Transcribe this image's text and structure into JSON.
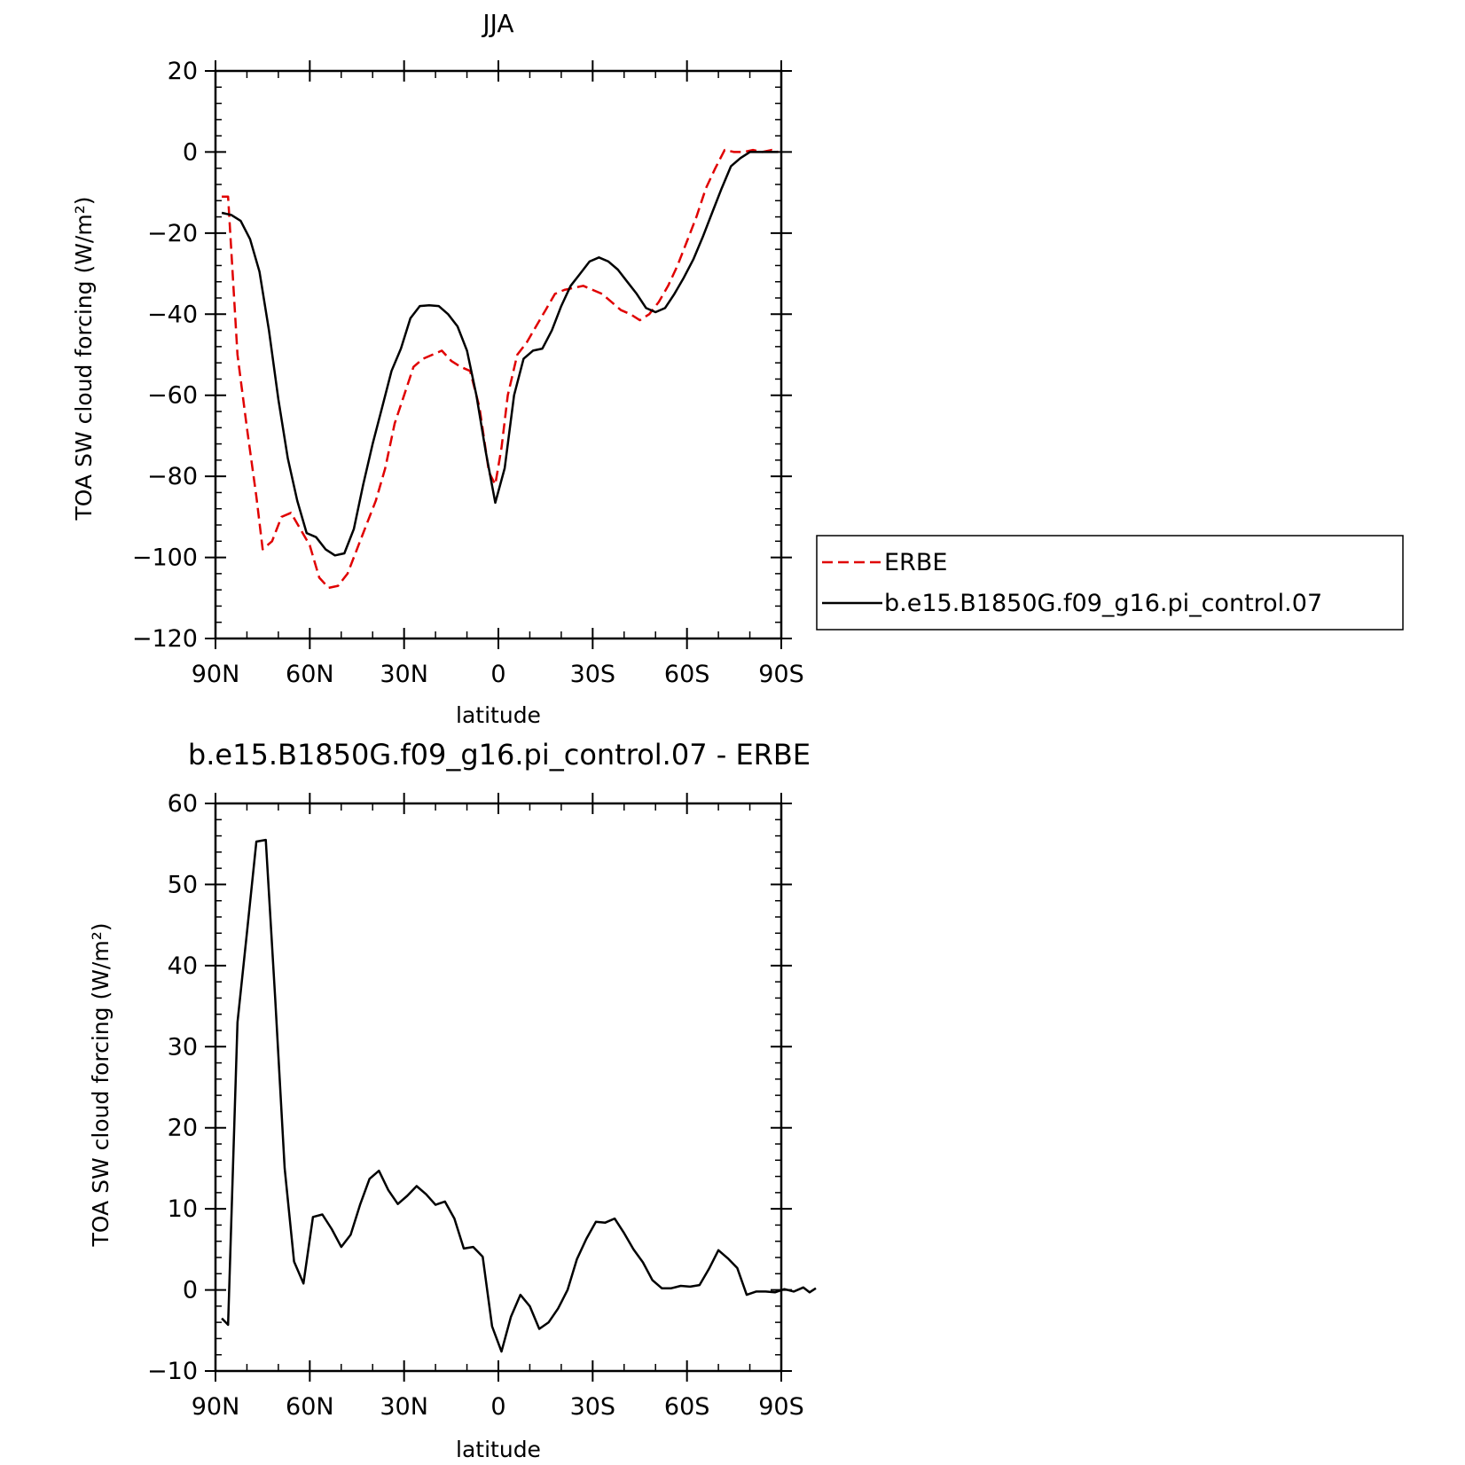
{
  "chart_data": [
    {
      "type": "line",
      "title": "JJA",
      "xlabel": "latitude",
      "ylabel": "TOA SW cloud forcing (W/m²)",
      "xlim": [
        -90,
        90
      ],
      "ylim": [
        -120,
        20
      ],
      "x_ticks": [
        {
          "value": -90,
          "label": "90N"
        },
        {
          "value": -60,
          "label": "60N"
        },
        {
          "value": -30,
          "label": "30N"
        },
        {
          "value": 0,
          "label": "0"
        },
        {
          "value": 30,
          "label": "30S"
        },
        {
          "value": 60,
          "label": "60S"
        },
        {
          "value": 90,
          "label": "90S"
        }
      ],
      "y_ticks": [
        20,
        0,
        -20,
        -40,
        -60,
        -80,
        -100,
        -120
      ],
      "legend": {
        "placement": "right"
      },
      "series": [
        {
          "name": "ERBE",
          "color": "#e00000",
          "dash": "dashed",
          "points": [
            [
              -88,
              -11
            ],
            [
              -86,
              -11
            ],
            [
              -83,
              -50
            ],
            [
              -80,
              -68
            ],
            [
              -77,
              -85
            ],
            [
              -75,
              -98
            ],
            [
              -72,
              -96
            ],
            [
              -69,
              -90
            ],
            [
              -66,
              -89
            ],
            [
              -63,
              -93
            ],
            [
              -60,
              -97
            ],
            [
              -57,
              -105
            ],
            [
              -54,
              -107.5
            ],
            [
              -51,
              -107
            ],
            [
              -48,
              -104
            ],
            [
              -45,
              -98
            ],
            [
              -42,
              -92
            ],
            [
              -39,
              -86
            ],
            [
              -36,
              -78
            ],
            [
              -33,
              -67
            ],
            [
              -30,
              -60
            ],
            [
              -27,
              -53
            ],
            [
              -24,
              -51
            ],
            [
              -21,
              -50
            ],
            [
              -18,
              -49
            ],
            [
              -15,
              -51.5
            ],
            [
              -12,
              -53
            ],
            [
              -9,
              -54
            ],
            [
              -6,
              -63
            ],
            [
              -3,
              -79
            ],
            [
              -1,
              -82
            ],
            [
              1,
              -73
            ],
            [
              3,
              -60
            ],
            [
              6,
              -50
            ],
            [
              9,
              -47
            ],
            [
              12,
              -43
            ],
            [
              15,
              -39
            ],
            [
              18,
              -35
            ],
            [
              21,
              -34
            ],
            [
              24,
              -33.5
            ],
            [
              27,
              -33
            ],
            [
              30,
              -34
            ],
            [
              33,
              -35
            ],
            [
              36,
              -37
            ],
            [
              39,
              -39
            ],
            [
              42,
              -40
            ],
            [
              45,
              -41.5
            ],
            [
              48,
              -40
            ],
            [
              51,
              -37
            ],
            [
              54,
              -33
            ],
            [
              57,
              -28
            ],
            [
              60,
              -22
            ],
            [
              63,
              -16
            ],
            [
              66,
              -9
            ],
            [
              69,
              -4
            ],
            [
              72,
              0.5
            ],
            [
              75,
              0
            ],
            [
              78,
              0
            ],
            [
              81,
              0.5
            ],
            [
              84,
              0
            ],
            [
              87,
              0.5
            ],
            [
              89,
              0
            ]
          ]
        },
        {
          "name": "b.e15.B1850G.f09_g16.pi_control.07",
          "color": "#000000",
          "dash": "solid",
          "points": [
            [
              -88,
              -15
            ],
            [
              -85,
              -15.5
            ],
            [
              -82,
              -17
            ],
            [
              -79,
              -21.5
            ],
            [
              -76,
              -29.5
            ],
            [
              -73,
              -44
            ],
            [
              -70,
              -61
            ],
            [
              -67,
              -75.5
            ],
            [
              -64,
              -86
            ],
            [
              -61,
              -94
            ],
            [
              -58,
              -95
            ],
            [
              -55,
              -98
            ],
            [
              -52,
              -99.5
            ],
            [
              -49,
              -99
            ],
            [
              -46,
              -93
            ],
            [
              -43,
              -82
            ],
            [
              -40,
              -72
            ],
            [
              -37,
              -63
            ],
            [
              -34,
              -54
            ],
            [
              -31,
              -48.5
            ],
            [
              -28,
              -41
            ],
            [
              -25,
              -38
            ],
            [
              -22,
              -37.8
            ],
            [
              -19,
              -38
            ],
            [
              -16,
              -40
            ],
            [
              -13,
              -43
            ],
            [
              -10,
              -49
            ],
            [
              -7,
              -60
            ],
            [
              -4,
              -74
            ],
            [
              -1,
              -86.5
            ],
            [
              2,
              -78
            ],
            [
              5,
              -60
            ],
            [
              8,
              -51
            ],
            [
              11,
              -49
            ],
            [
              14,
              -48.5
            ],
            [
              17,
              -44
            ],
            [
              20,
              -38
            ],
            [
              23,
              -33
            ],
            [
              26,
              -30
            ],
            [
              29,
              -27
            ],
            [
              32,
              -26
            ],
            [
              35,
              -27
            ],
            [
              38,
              -29
            ],
            [
              41,
              -32
            ],
            [
              44,
              -35
            ],
            [
              47,
              -38.5
            ],
            [
              50,
              -39.5
            ],
            [
              53,
              -38.5
            ],
            [
              56,
              -35
            ],
            [
              59,
              -31
            ],
            [
              62,
              -26.5
            ],
            [
              65,
              -21
            ],
            [
              68,
              -15
            ],
            [
              71,
              -9
            ],
            [
              74,
              -3.5
            ],
            [
              77,
              -1.5
            ],
            [
              80,
              0
            ],
            [
              83,
              0
            ],
            [
              86,
              0
            ],
            [
              89,
              0
            ]
          ]
        }
      ]
    },
    {
      "type": "line",
      "title": "b.e15.B1850G.f09_g16.pi_control.07 - ERBE",
      "xlabel": "latitude",
      "ylabel": "TOA SW cloud forcing (W/m²)",
      "xlim": [
        -90,
        90
      ],
      "ylim": [
        -10,
        60
      ],
      "x_ticks": [
        {
          "value": -90,
          "label": "90N"
        },
        {
          "value": -60,
          "label": "60N"
        },
        {
          "value": -30,
          "label": "30N"
        },
        {
          "value": 0,
          "label": "0"
        },
        {
          "value": 30,
          "label": "30S"
        },
        {
          "value": 60,
          "label": "60S"
        },
        {
          "value": 90,
          "label": "90S"
        }
      ],
      "y_ticks": [
        60,
        50,
        40,
        30,
        20,
        10,
        0,
        -10
      ],
      "series": [
        {
          "color": "#000000",
          "dash": "solid",
          "points": [
            [
              -88,
              -3.5
            ],
            [
              -86,
              -4.3
            ],
            [
              -83,
              33
            ],
            [
              -80,
              44
            ],
            [
              -77,
              55.3
            ],
            [
              -74,
              55.5
            ],
            [
              -71,
              36
            ],
            [
              -68,
              15
            ],
            [
              -65,
              3.5
            ],
            [
              -62,
              0.8
            ],
            [
              -59,
              9
            ],
            [
              -56,
              9.3
            ],
            [
              -53,
              7.5
            ],
            [
              -50,
              5.3
            ],
            [
              -47,
              6.8
            ],
            [
              -44,
              10.5
            ],
            [
              -41,
              13.7
            ],
            [
              -38,
              14.7
            ],
            [
              -35,
              12.3
            ],
            [
              -32,
              10.6
            ],
            [
              -29,
              11.6
            ],
            [
              -26,
              12.8
            ],
            [
              -23,
              11.8
            ],
            [
              -20,
              10.5
            ],
            [
              -17,
              10.9
            ],
            [
              -14,
              8.8
            ],
            [
              -11,
              5.1
            ],
            [
              -8,
              5.3
            ],
            [
              -5,
              4.1
            ],
            [
              -2,
              -4.5
            ],
            [
              1,
              -7.6
            ],
            [
              4,
              -3.3
            ],
            [
              7,
              -0.6
            ],
            [
              10,
              -2
            ],
            [
              13,
              -4.8
            ],
            [
              16,
              -4
            ],
            [
              19,
              -2.3
            ],
            [
              22,
              0
            ],
            [
              25,
              3.8
            ],
            [
              28,
              6.3
            ],
            [
              31,
              8.4
            ],
            [
              34,
              8.3
            ],
            [
              37,
              8.8
            ],
            [
              40,
              7
            ],
            [
              43,
              5
            ],
            [
              46,
              3.4
            ],
            [
              49,
              1.2
            ],
            [
              52,
              0.2
            ],
            [
              55,
              0.2
            ],
            [
              58,
              0.5
            ],
            [
              61,
              0.4
            ],
            [
              64,
              0.6
            ],
            [
              67,
              2.6
            ],
            [
              70,
              4.9
            ],
            [
              73,
              3.9
            ],
            [
              76,
              2.7
            ],
            [
              79,
              -0.6
            ],
            [
              82,
              -0.2
            ],
            [
              85,
              -0.2
            ],
            [
              88,
              -0.3
            ],
            [
              91,
              0.1
            ],
            [
              94,
              -0.2
            ],
            [
              97,
              0.3
            ],
            [
              99,
              -0.3
            ],
            [
              101,
              0.2
            ]
          ]
        }
      ]
    }
  ]
}
